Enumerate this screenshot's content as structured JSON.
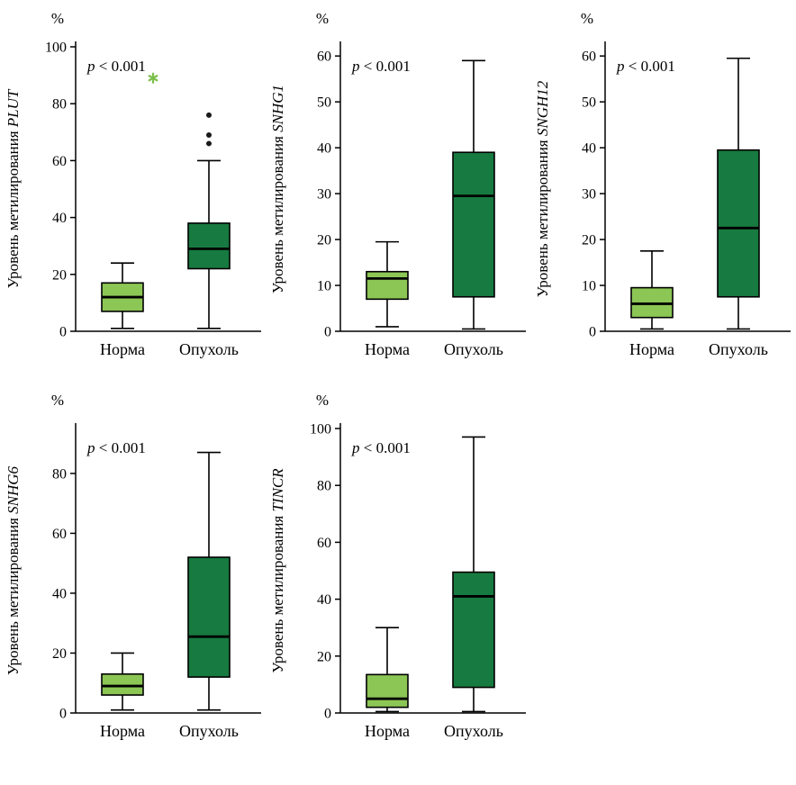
{
  "figure": {
    "background": "#ffffff"
  },
  "colors": {
    "norma_fill": "#8cc655",
    "opukhol_fill": "#177a40",
    "stroke": "#000000",
    "outlier_marker": "#1a1a1a",
    "extreme_marker": "#7cbf4b"
  },
  "chart_data": [
    {
      "type": "box",
      "gene": "PLUT",
      "ylabel": "Уровень метилирования",
      "unit": "%",
      "annotation": {
        "italic": "p",
        "text": " < 0.001"
      },
      "categories": [
        "Норма",
        "Опухоль"
      ],
      "ylim": [
        0,
        100
      ],
      "yticks": [
        0,
        20,
        40,
        60,
        80,
        100
      ],
      "boxes": [
        {
          "category": "Норма",
          "whisker_low": 1,
          "q1": 7,
          "median": 12,
          "q3": 17,
          "whisker_high": 24,
          "outliers": [],
          "extreme_outliers": [
            89
          ]
        },
        {
          "category": "Опухоль",
          "whisker_low": 1,
          "q1": 22,
          "median": 29,
          "q3": 38,
          "whisker_high": 60,
          "outliers": [
            66,
            69,
            76
          ],
          "extreme_outliers": []
        }
      ]
    },
    {
      "type": "box",
      "gene": "SNHG1",
      "ylabel": "Уровень метилирования",
      "unit": "%",
      "annotation": {
        "italic": "p",
        "text": " < 0.001"
      },
      "categories": [
        "Норма",
        "Опухоль"
      ],
      "ylim": [
        0,
        62
      ],
      "yticks": [
        0,
        10,
        20,
        30,
        40,
        50,
        60
      ],
      "boxes": [
        {
          "category": "Норма",
          "whisker_low": 1,
          "q1": 7,
          "median": 11.5,
          "q3": 13,
          "whisker_high": 19.5,
          "outliers": [],
          "extreme_outliers": []
        },
        {
          "category": "Опухоль",
          "whisker_low": 0.5,
          "q1": 7.5,
          "median": 29.5,
          "q3": 39,
          "whisker_high": 59,
          "outliers": [],
          "extreme_outliers": []
        }
      ]
    },
    {
      "type": "box",
      "gene": "SNGH12",
      "ylabel": "Уровень метилирования",
      "unit": "%",
      "annotation": {
        "italic": "p",
        "text": " < 0.001"
      },
      "categories": [
        "Норма",
        "Опухоль"
      ],
      "ylim": [
        0,
        62
      ],
      "yticks": [
        0,
        10,
        20,
        30,
        40,
        50,
        60
      ],
      "boxes": [
        {
          "category": "Норма",
          "whisker_low": 0.5,
          "q1": 3,
          "median": 6,
          "q3": 9.5,
          "whisker_high": 17.5,
          "outliers": [],
          "extreme_outliers": []
        },
        {
          "category": "Опухоль",
          "whisker_low": 0.5,
          "q1": 7.5,
          "median": 22.5,
          "q3": 39.5,
          "whisker_high": 59.5,
          "outliers": [],
          "extreme_outliers": []
        }
      ]
    },
    {
      "type": "box",
      "gene": "SNHG6",
      "ylabel": "Уровень метилирования",
      "unit": "%",
      "annotation": {
        "italic": "p",
        "text": " < 0.001"
      },
      "categories": [
        "Норма",
        "Опухоль"
      ],
      "ylim": [
        0,
        95
      ],
      "yticks": [
        0,
        20,
        40,
        60,
        80
      ],
      "boxes": [
        {
          "category": "Норма",
          "whisker_low": 1,
          "q1": 6,
          "median": 9,
          "q3": 13,
          "whisker_high": 20,
          "outliers": [],
          "extreme_outliers": []
        },
        {
          "category": "Опухоль",
          "whisker_low": 1,
          "q1": 12,
          "median": 25.5,
          "q3": 52,
          "whisker_high": 87,
          "outliers": [],
          "extreme_outliers": []
        }
      ]
    },
    {
      "type": "box",
      "gene": "TINCR",
      "ylabel": "Уровень метилирования",
      "unit": "%",
      "annotation": {
        "italic": "p",
        "text": " < 0.001"
      },
      "categories": [
        "Норма",
        "Опухоль"
      ],
      "ylim": [
        0,
        100
      ],
      "yticks": [
        0,
        20,
        40,
        60,
        80,
        100
      ],
      "boxes": [
        {
          "category": "Норма",
          "whisker_low": 0.5,
          "q1": 2,
          "median": 5,
          "q3": 13.5,
          "whisker_high": 30,
          "outliers": [],
          "extreme_outliers": []
        },
        {
          "category": "Опухоль",
          "whisker_low": 0.5,
          "q1": 9,
          "median": 41,
          "q3": 49.5,
          "whisker_high": 97,
          "outliers": [],
          "extreme_outliers": []
        }
      ]
    }
  ]
}
